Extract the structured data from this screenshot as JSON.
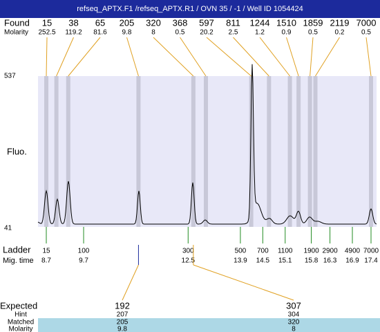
{
  "title": "refseq_APTX.F1 /refseq_APTX.R1 / OVN 35 / -1 / Well ID 1054424",
  "found": {
    "label": "Found",
    "sizes": [
      15,
      38,
      65,
      205,
      320,
      368,
      597,
      811,
      1244,
      1510,
      1859,
      2119,
      7000
    ],
    "molarity_label": "Molarity",
    "molarities": [
      252.5,
      119.2,
      81.6,
      9.8,
      8,
      0.5,
      20.2,
      2.5,
      1.2,
      0.9,
      0.5,
      0.2,
      0.5
    ]
  },
  "y_axis": {
    "label": "Fluo.",
    "ylim": [
      41,
      537
    ]
  },
  "ladder": {
    "label": "Ladder",
    "sizes": [
      15,
      100,
      300,
      500,
      700,
      1100,
      1900,
      2900,
      4900,
      7000
    ],
    "time_label": "Mig. time",
    "times": [
      8.7,
      9.7,
      12.5,
      13.9,
      14.5,
      15.1,
      15.8,
      16.3,
      16.9,
      17.4
    ]
  },
  "expected": {
    "label": "Expected",
    "values": [
      192,
      307
    ],
    "hint_label": "Hint",
    "hint": [
      207,
      304
    ],
    "matched_label": "Matched",
    "matched": [
      205,
      320
    ],
    "molarity_label": "Molarity",
    "molarity": [
      9.8,
      8
    ]
  }
}
